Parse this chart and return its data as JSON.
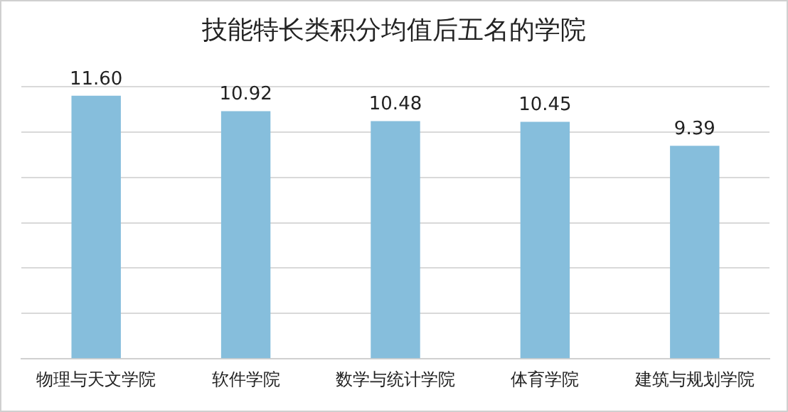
{
  "chart_data": {
    "type": "bar",
    "title": "技能特长类积分均值后五名的学院",
    "categories": [
      "物理与天文学院",
      "软件学院",
      "数学与统计学院",
      "体育学院",
      "建筑与规划学院"
    ],
    "values": [
      11.6,
      10.92,
      10.48,
      10.45,
      9.39
    ],
    "value_labels": [
      "11.60",
      "10.92",
      "10.48",
      "10.45",
      "9.39"
    ],
    "color": "#86bedc",
    "ylim": [
      0,
      12
    ],
    "grid": "y",
    "tick_labels": "x"
  }
}
